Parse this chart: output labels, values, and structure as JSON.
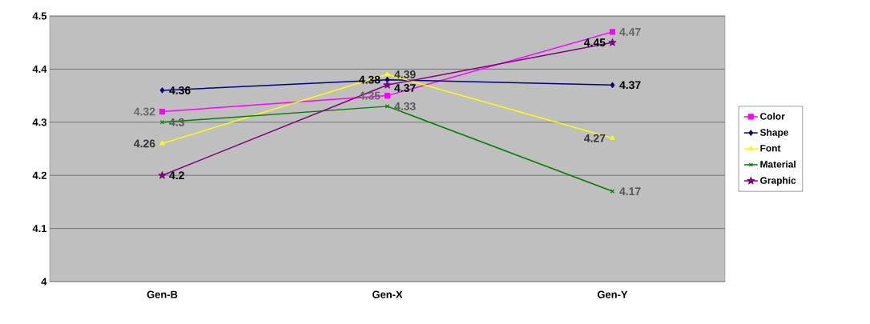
{
  "chart_data": {
    "type": "line",
    "categories": [
      "Gen-B",
      "Gen-X",
      "Gen-Y"
    ],
    "series": [
      {
        "name": "Color",
        "color": "#ff00ff",
        "marker": "square",
        "values": [
          4.32,
          4.35,
          4.47
        ]
      },
      {
        "name": "Shape",
        "color": "#000080",
        "marker": "diamond",
        "values": [
          4.36,
          4.38,
          4.37
        ]
      },
      {
        "name": "Font",
        "color": "#ffff00",
        "marker": "triangle",
        "values": [
          4.26,
          4.39,
          4.27
        ]
      },
      {
        "name": "Material",
        "color": "#008000",
        "marker": "cross",
        "values": [
          4.3,
          4.33,
          4.17
        ]
      },
      {
        "name": "Graphic",
        "color": "#800080",
        "marker": "star",
        "values": [
          4.2,
          4.37,
          4.45
        ]
      }
    ],
    "ylim": [
      4,
      4.5
    ],
    "yticks": [
      4,
      4.1,
      4.2,
      4.3,
      4.4,
      4.5
    ],
    "grid": "y",
    "legend": "right",
    "data_labels": true
  }
}
